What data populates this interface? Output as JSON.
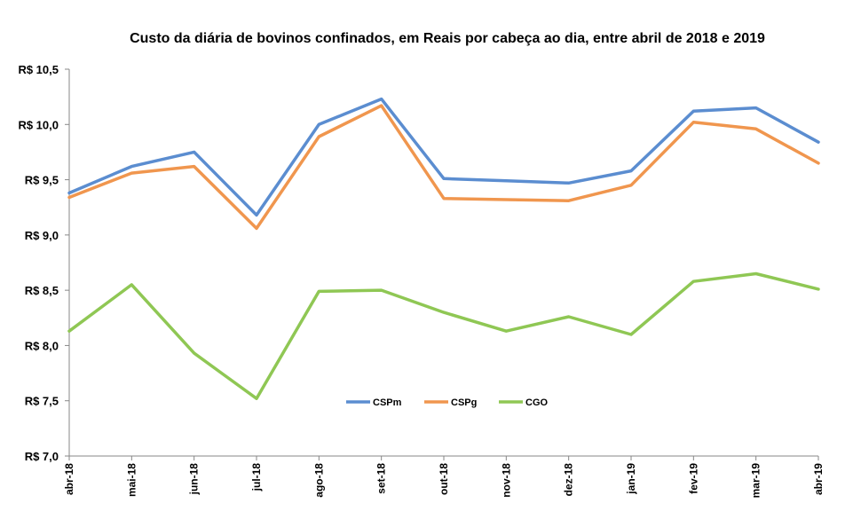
{
  "chart_data": {
    "type": "line",
    "title": "Custo da diária de bovinos confinados, em Reais por cabeça ao dia, entre  abril de 2018 e 2019",
    "xlabel": "",
    "ylabel": "",
    "categories": [
      "abr-18",
      "mai-18",
      "jun-18",
      "jul-18",
      "ago-18",
      "set-18",
      "out-18",
      "nov-18",
      "dez-18",
      "jan-19",
      "fev-19",
      "mar-19",
      "abr-19"
    ],
    "ylim": [
      7.0,
      10.5
    ],
    "yticks": [
      7.0,
      7.5,
      8.0,
      8.5,
      9.0,
      9.5,
      10.0,
      10.5
    ],
    "ytick_labels": [
      "R$ 7,0",
      "R$ 7,5",
      "R$ 8,0",
      "R$ 8,5",
      "R$ 9,0",
      "R$ 9,5",
      "R$ 10,0",
      "R$ 10,5"
    ],
    "grid": false,
    "legend_position": "center-bottom",
    "series": [
      {
        "name": "CSPm",
        "color": "#5B8DD0",
        "values": [
          9.38,
          9.62,
          9.75,
          9.18,
          10.0,
          10.23,
          9.51,
          9.49,
          9.47,
          9.58,
          10.12,
          10.15,
          9.84
        ]
      },
      {
        "name": "CSPg",
        "color": "#F0964E",
        "values": [
          9.34,
          9.56,
          9.62,
          9.06,
          9.89,
          10.17,
          9.33,
          9.32,
          9.31,
          9.45,
          10.02,
          9.96,
          9.65
        ]
      },
      {
        "name": "CGO",
        "color": "#8FC754",
        "values": [
          8.13,
          8.55,
          7.93,
          7.52,
          8.49,
          8.5,
          8.3,
          8.13,
          8.26,
          8.1,
          8.58,
          8.65,
          8.51
        ]
      }
    ]
  }
}
